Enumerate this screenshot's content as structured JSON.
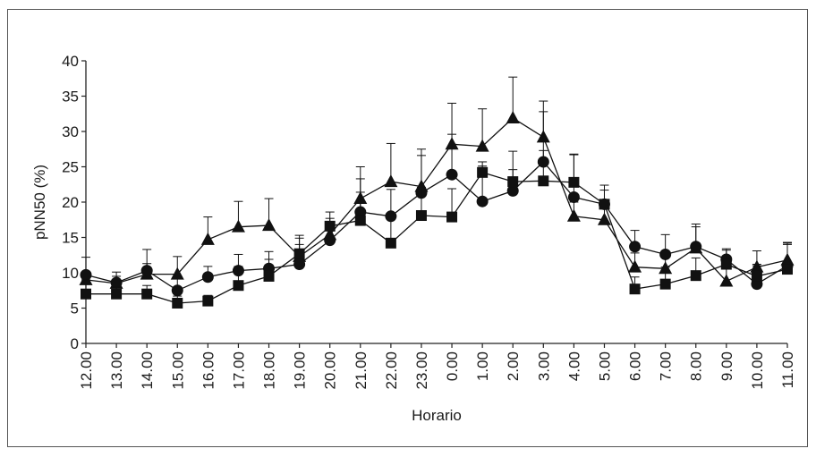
{
  "chart_data": {
    "type": "line",
    "xlabel": "Horario",
    "ylabel": "pNN50 (%)",
    "ylim": [
      0,
      40
    ],
    "yticks": [
      0,
      5,
      10,
      15,
      20,
      25,
      30,
      35,
      40
    ],
    "grid": false,
    "legend": "none",
    "categories": [
      "12.00",
      "13.00",
      "14.00",
      "15.00",
      "16.00",
      "17.00",
      "18.00",
      "19.00",
      "20.00",
      "21.00",
      "22.00",
      "23.00",
      "0.00",
      "1.00",
      "2.00",
      "3.00",
      "4.00",
      "5.00",
      "6.00",
      "7.00",
      "8.00",
      "9.00",
      "10.00",
      "11.00"
    ],
    "series": [
      {
        "marker": "triangle",
        "values": [
          9.0,
          8.5,
          9.8,
          9.8,
          14.7,
          16.5,
          16.7,
          12.3,
          15.4,
          20.5,
          22.9,
          22.2,
          28.2,
          27.9,
          31.9,
          29.2,
          18.0,
          17.5,
          10.8,
          10.6,
          13.5,
          8.8,
          10.8,
          11.8
        ],
        "errors": [
          1.0,
          1.0,
          1.5,
          2.5,
          3.2,
          3.6,
          3.8,
          2.6,
          2.3,
          4.5,
          5.4,
          5.3,
          5.8,
          5.3,
          5.8,
          5.1,
          2.0,
          1.7,
          2.0,
          2.0,
          3.0,
          2.3,
          2.3,
          2.2
        ],
        "color": "#111111"
      },
      {
        "marker": "circle",
        "values": [
          9.7,
          8.6,
          10.3,
          7.5,
          9.4,
          10.3,
          10.6,
          11.2,
          14.6,
          18.6,
          18.0,
          21.3,
          23.9,
          20.1,
          21.6,
          25.7,
          20.7,
          19.7,
          13.7,
          12.6,
          13.7,
          11.9,
          8.4,
          11.0
        ],
        "errors": [
          2.5,
          1.5,
          3.0,
          2.0,
          1.5,
          2.3,
          2.4,
          2.8,
          2.4,
          4.7,
          3.8,
          5.3,
          5.7,
          5.0,
          3.0,
          7.1,
          6.0,
          2.7,
          2.3,
          2.8,
          3.2,
          1.5,
          2.8,
          3.2
        ],
        "color": "#111111"
      },
      {
        "marker": "square",
        "values": [
          7.0,
          7.0,
          7.0,
          5.7,
          6.0,
          8.2,
          9.5,
          12.7,
          16.6,
          17.4,
          14.2,
          18.1,
          17.9,
          24.2,
          22.9,
          23.0,
          22.8,
          19.7,
          7.7,
          8.4,
          9.6,
          11.2,
          9.5,
          10.5
        ],
        "errors": [
          2.0,
          1.0,
          1.2,
          1.0,
          0.8,
          2.7,
          2.4,
          2.6,
          2.0,
          4.0,
          4.2,
          4.0,
          4.0,
          1.5,
          4.3,
          4.3,
          4.0,
          2.0,
          1.7,
          2.4,
          2.5,
          2.0,
          1.5,
          3.8
        ],
        "color": "#111111"
      }
    ]
  }
}
